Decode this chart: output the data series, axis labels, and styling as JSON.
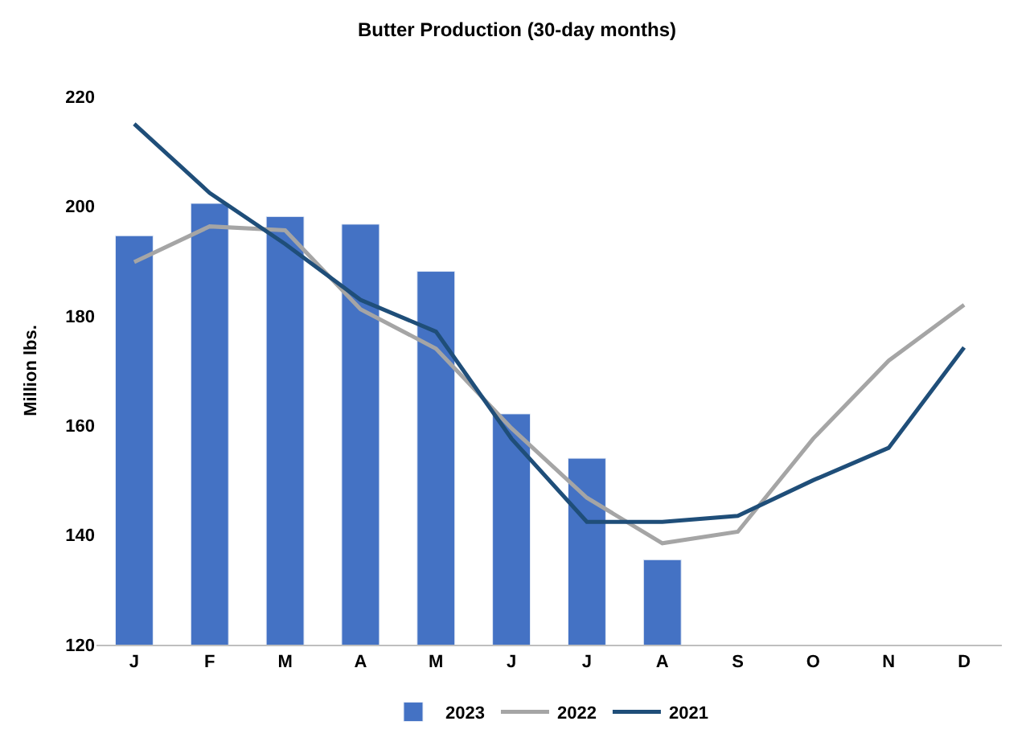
{
  "chart_data": {
    "type": "bar",
    "title": "Butter Production (30-day months)",
    "ylabel": "Million lbs.",
    "categories": [
      "J",
      "F",
      "M",
      "A",
      "M",
      "J",
      "J",
      "A",
      "S",
      "O",
      "N",
      "D"
    ],
    "series": [
      {
        "name": "2023",
        "color": "#4472c4",
        "values": [
          194.6,
          200.5,
          198.1,
          196.7,
          188.1,
          162.1,
          154.0,
          135.5,
          null,
          null,
          null,
          null
        ]
      },
      {
        "name": "2022",
        "type": "line",
        "color": "#a5a5a5",
        "values": [
          189.8,
          196.3,
          195.6,
          181.2,
          174.0,
          159.5,
          146.8,
          138.5,
          140.6,
          157.6,
          171.8,
          182.0
        ]
      },
      {
        "name": "2021",
        "type": "line",
        "color": "#1f4e79",
        "values": [
          215.0,
          202.4,
          193.1,
          182.9,
          177.1,
          157.6,
          142.4,
          142.4,
          143.5,
          150.0,
          155.9,
          174.2
        ]
      }
    ],
    "ylim": [
      120,
      220
    ],
    "yticks": [
      120,
      140,
      160,
      180,
      200,
      220
    ],
    "legend": "bottom",
    "line_style": "solid",
    "marker": "none"
  }
}
